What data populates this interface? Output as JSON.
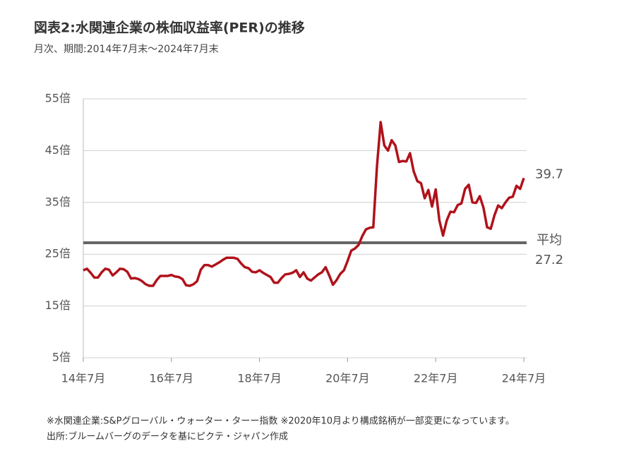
{
  "chart_data": {
    "type": "line",
    "title": "図表2:水関連企業の株価収益率(PER)の推移",
    "subtitle": "月次、期間:2014年7月末～2024年7月末",
    "notes": [
      "※水関連企業:S&Pグローバル・ウォーター・ターー指数 ※2020年10月より構成銘柄が一部変更になっています。",
      "出所:ブルームバーグのデータを基にピクテ・ジャパン作成"
    ],
    "categories": [
      "14年7月",
      null,
      null,
      null,
      null,
      null,
      null,
      null,
      null,
      null,
      null,
      null,
      null,
      null,
      null,
      null,
      null,
      null,
      null,
      null,
      null,
      null,
      null,
      null,
      "16年7月",
      null,
      null,
      null,
      null,
      null,
      null,
      null,
      null,
      null,
      null,
      null,
      null,
      null,
      null,
      null,
      null,
      null,
      null,
      null,
      null,
      null,
      null,
      null,
      "18年7月",
      null,
      null,
      null,
      null,
      null,
      null,
      null,
      null,
      null,
      null,
      null,
      null,
      null,
      null,
      null,
      null,
      null,
      null,
      null,
      null,
      null,
      null,
      null,
      "20年7月",
      null,
      null,
      null,
      null,
      null,
      null,
      null,
      null,
      null,
      null,
      null,
      null,
      null,
      null,
      null,
      null,
      null,
      null,
      null,
      null,
      null,
      null,
      null,
      "22年7月",
      null,
      null,
      null,
      null,
      null,
      null,
      null,
      null,
      null,
      null,
      null,
      null,
      null,
      null,
      null,
      null,
      null,
      null,
      null,
      null,
      null,
      null,
      null,
      "24年7月"
    ],
    "series": [
      {
        "name": "PER",
        "color": "#b0121b",
        "values": [
          21.9,
          22.2,
          21.4,
          20.5,
          20.5,
          21.5,
          22.2,
          22.0,
          20.9,
          21.5,
          22.2,
          22.1,
          21.6,
          20.3,
          20.4,
          20.2,
          19.8,
          19.2,
          18.9,
          18.9,
          20.0,
          20.8,
          20.8,
          20.8,
          21.0,
          20.7,
          20.6,
          20.2,
          19.0,
          18.9,
          19.2,
          19.8,
          22.0,
          22.9,
          22.9,
          22.6,
          23.0,
          23.4,
          23.9,
          24.3,
          24.3,
          24.3,
          24.1,
          23.2,
          22.5,
          22.3,
          21.6,
          21.5,
          21.9,
          21.4,
          21.0,
          20.6,
          19.5,
          19.5,
          20.4,
          21.1,
          21.2,
          21.4,
          21.9,
          20.6,
          21.5,
          20.3,
          19.9,
          20.5,
          21.1,
          21.5,
          22.5,
          20.9,
          19.1,
          20.0,
          21.2,
          21.9,
          23.7,
          25.7,
          26.1,
          26.8,
          28.5,
          29.8,
          30.1,
          30.2,
          42.0,
          50.5,
          46.0,
          45.0,
          47.0,
          46.0,
          42.8,
          43.0,
          42.9,
          44.5,
          41.0,
          39.1,
          38.7,
          35.8,
          37.4,
          34.2,
          37.5,
          31.5,
          28.6,
          31.5,
          33.2,
          33.1,
          34.5,
          34.8,
          37.6,
          38.4,
          35.0,
          34.9,
          36.2,
          34.0,
          30.2,
          29.9,
          32.5,
          34.4,
          33.9,
          35.0,
          35.9,
          36.1,
          38.2,
          37.6,
          39.7
        ]
      }
    ],
    "average": {
      "label": "平均",
      "value": 27.2,
      "color": "#666666"
    },
    "ylim": [
      5,
      55
    ],
    "yticks": [
      {
        "value": 5,
        "label": "5倍"
      },
      {
        "value": 15,
        "label": "15倍"
      },
      {
        "value": 25,
        "label": "25倍"
      },
      {
        "value": 35,
        "label": "35倍"
      },
      {
        "value": 45,
        "label": "45倍"
      },
      {
        "value": 55,
        "label": "55倍"
      }
    ],
    "grid": true
  }
}
